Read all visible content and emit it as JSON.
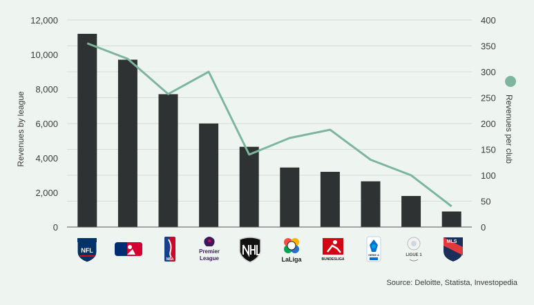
{
  "chart_data": {
    "type": "bar+line",
    "categories": [
      "NFL",
      "MLB",
      "NBA",
      "Premier League",
      "NHL",
      "LaLiga",
      "Bundesliga",
      "Serie A",
      "Ligue 1",
      "MLS"
    ],
    "series": [
      {
        "type": "bar",
        "axis": "left",
        "values": [
          11200,
          9700,
          7700,
          6000,
          4650,
          3450,
          3200,
          2650,
          1800,
          900
        ]
      },
      {
        "type": "line",
        "axis": "right",
        "values": [
          355,
          325,
          257,
          300,
          140,
          172,
          188,
          130,
          100,
          40
        ]
      }
    ],
    "ylabel": "Revenues by league",
    "y2label": "Revenues per club",
    "ylim": [
      0,
      12000
    ],
    "y2lim": [
      0,
      400
    ],
    "yticks": [
      "0",
      "2,000",
      "4,000",
      "6,000",
      "8,000",
      "10,000",
      "12,000"
    ],
    "y2ticks": [
      "0",
      "50",
      "100",
      "150",
      "200",
      "250",
      "300",
      "350",
      "400"
    ],
    "grid": true,
    "colors": {
      "bar": "#2e3232",
      "line": "#7db59e",
      "grid": "#d3ddd8",
      "axis": "#555555"
    }
  },
  "logos": {
    "nfl": "NFL",
    "premier_1": "Premier",
    "premier_2": "League",
    "nba": "NBA",
    "laliga": "LaLiga",
    "bundesliga": "BUNDESLIGA",
    "serie_a_1": "SERIE A",
    "ligue_1": "LIGUE 1",
    "mls": "MLS"
  },
  "source": "Source: Deloitte, Statista, Investopedia"
}
